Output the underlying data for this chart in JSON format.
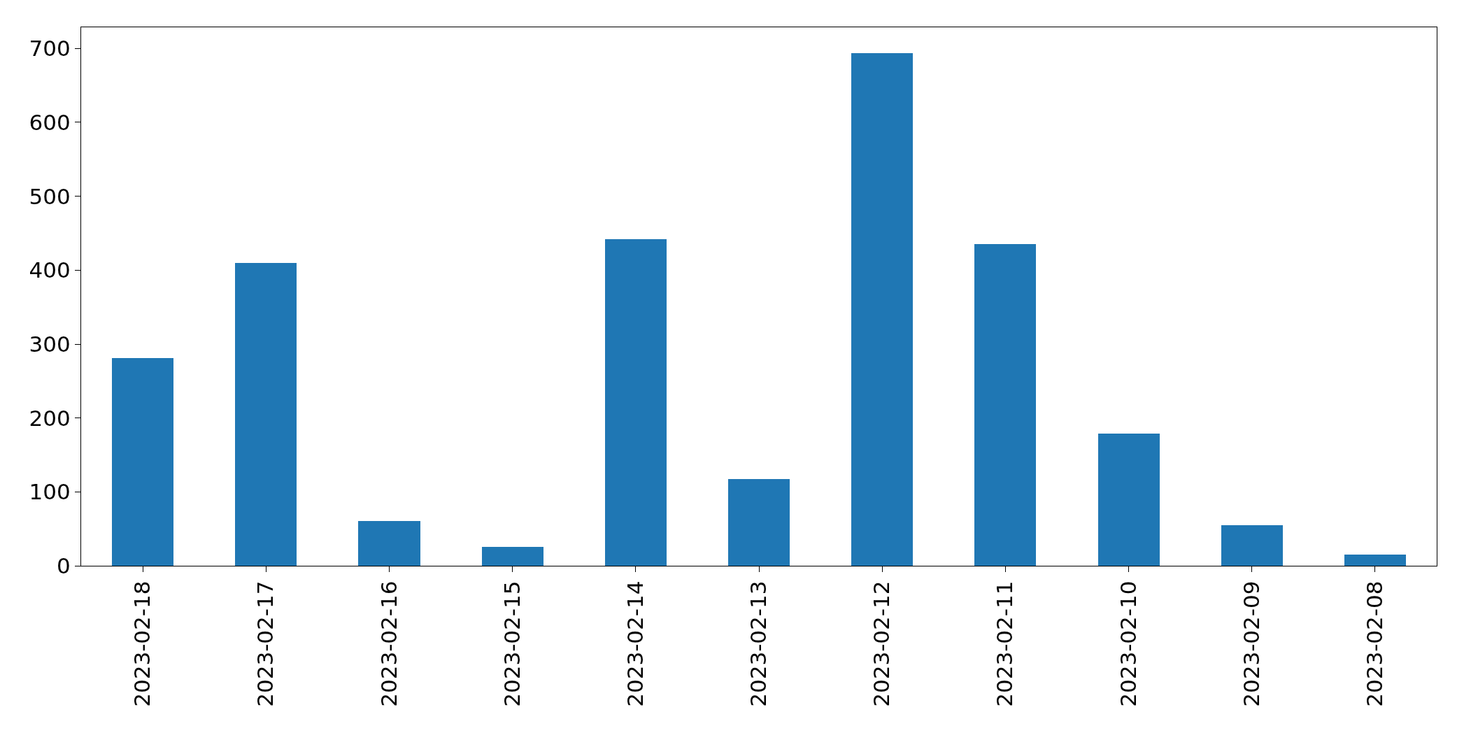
{
  "chart_data": {
    "type": "bar",
    "categories": [
      "2023-02-18",
      "2023-02-17",
      "2023-02-16",
      "2023-02-15",
      "2023-02-14",
      "2023-02-13",
      "2023-02-12",
      "2023-02-11",
      "2023-02-10",
      "2023-02-09",
      "2023-02-08"
    ],
    "values": [
      281,
      410,
      61,
      26,
      442,
      117,
      694,
      435,
      179,
      55,
      15
    ],
    "color": "#1f77b4",
    "ylim": [
      0,
      728.7
    ],
    "yticks": [
      0,
      100,
      200,
      300,
      400,
      500,
      600,
      700
    ],
    "grid": false
  }
}
